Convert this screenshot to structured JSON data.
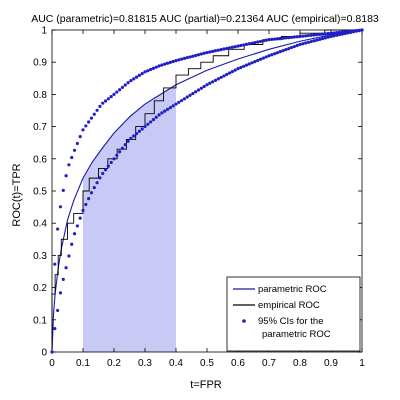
{
  "chart_data": {
    "type": "line",
    "title": "AUC (parametric)=0.81815  AUC (partial)=0.21364  AUC (empirical)=0.8183",
    "xlabel": "t=FPR",
    "ylabel": "ROC(t)=TPR",
    "xlim": [
      0,
      1
    ],
    "ylim": [
      0,
      1
    ],
    "xticks": [
      "0",
      "0.1",
      "0.2",
      "0.3",
      "0.4",
      "0.5",
      "0.6",
      "0.7",
      "0.8",
      "0.9",
      "1"
    ],
    "yticks": [
      "0",
      "0.1",
      "0.2",
      "0.3",
      "0.4",
      "0.5",
      "0.6",
      "0.7",
      "0.8",
      "0.9",
      "1"
    ],
    "grid": false,
    "legend_position": "bottom-right",
    "colors": {
      "parametric": "#1a1aa8",
      "empirical": "#000000",
      "ci": "#1f1fc8",
      "shaded": "#c9c9f5"
    },
    "shaded_region": {
      "x_from": 0.1,
      "x_to": 0.4
    },
    "series": [
      {
        "name": "parametric ROC",
        "style": "line",
        "x": [
          0,
          0.005,
          0.01,
          0.02,
          0.03,
          0.05,
          0.07,
          0.1,
          0.13,
          0.16,
          0.2,
          0.25,
          0.3,
          0.35,
          0.4,
          0.5,
          0.6,
          0.7,
          0.8,
          0.9,
          1.0
        ],
        "y": [
          0,
          0.12,
          0.18,
          0.26,
          0.32,
          0.41,
          0.47,
          0.54,
          0.59,
          0.63,
          0.68,
          0.73,
          0.77,
          0.8,
          0.83,
          0.875,
          0.91,
          0.94,
          0.965,
          0.985,
          1.0
        ]
      },
      {
        "name": "empirical ROC",
        "style": "step",
        "x": [
          0,
          0.0,
          0.01,
          0.01,
          0.02,
          0.02,
          0.03,
          0.03,
          0.05,
          0.05,
          0.07,
          0.07,
          0.1,
          0.1,
          0.12,
          0.12,
          0.15,
          0.15,
          0.18,
          0.18,
          0.21,
          0.21,
          0.24,
          0.24,
          0.27,
          0.27,
          0.3,
          0.3,
          0.33,
          0.33,
          0.36,
          0.36,
          0.4,
          0.4,
          0.44,
          0.44,
          0.48,
          0.48,
          0.52,
          0.52,
          0.57,
          0.57,
          0.62,
          0.62,
          0.68,
          0.68,
          0.74,
          0.74,
          0.8,
          0.8,
          0.88,
          0.88,
          1.0
        ],
        "y": [
          0,
          0.18,
          0.18,
          0.24,
          0.24,
          0.3,
          0.3,
          0.35,
          0.35,
          0.4,
          0.4,
          0.43,
          0.43,
          0.5,
          0.5,
          0.54,
          0.54,
          0.57,
          0.57,
          0.6,
          0.6,
          0.63,
          0.63,
          0.66,
          0.66,
          0.7,
          0.7,
          0.74,
          0.74,
          0.78,
          0.78,
          0.82,
          0.82,
          0.86,
          0.86,
          0.88,
          0.88,
          0.9,
          0.9,
          0.92,
          0.92,
          0.94,
          0.94,
          0.955,
          0.955,
          0.97,
          0.97,
          0.98,
          0.98,
          0.99,
          0.99,
          1.0,
          1.0
        ]
      },
      {
        "name": "95% CIs for the parametric ROC",
        "style": "dots",
        "lower": {
          "x": [
            0,
            0.01,
            0.02,
            0.03,
            0.05,
            0.07,
            0.1,
            0.13,
            0.16,
            0.2,
            0.25,
            0.3,
            0.35,
            0.4,
            0.5,
            0.6,
            0.7,
            0.8,
            0.9,
            1.0
          ],
          "y": [
            0,
            0.08,
            0.14,
            0.2,
            0.28,
            0.36,
            0.44,
            0.5,
            0.55,
            0.6,
            0.66,
            0.7,
            0.74,
            0.77,
            0.83,
            0.88,
            0.92,
            0.955,
            0.98,
            1.0
          ]
        },
        "upper": {
          "x": [
            0,
            0.01,
            0.02,
            0.03,
            0.05,
            0.07,
            0.1,
            0.13,
            0.16,
            0.2,
            0.25,
            0.3,
            0.35,
            0.4,
            0.5,
            0.6,
            0.7,
            0.8,
            0.9,
            1.0
          ],
          "y": [
            0,
            0.3,
            0.4,
            0.47,
            0.57,
            0.62,
            0.69,
            0.73,
            0.77,
            0.8,
            0.84,
            0.87,
            0.89,
            0.905,
            0.93,
            0.95,
            0.97,
            0.98,
            0.99,
            1.0
          ]
        }
      }
    ],
    "legend": [
      {
        "label": "parametric ROC",
        "style": "line"
      },
      {
        "label": "empirical ROC",
        "style": "line-black"
      },
      {
        "label": "95% CIs for the",
        "label2": "parametric ROC",
        "style": "dot"
      }
    ]
  }
}
